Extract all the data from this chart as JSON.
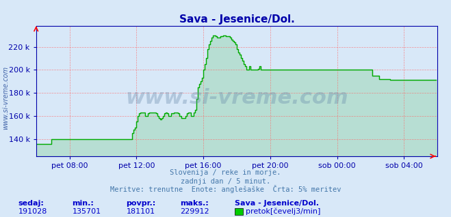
{
  "title": "Sava - Jesenice/Dol.",
  "background_color": "#d8e8f8",
  "plot_bg_color": "#d8e8f8",
  "line_color": "#00aa00",
  "axis_color": "#0000aa",
  "grid_color": "#ff6666",
  "text_color": "#0000aa",
  "ylabel_text": "www.si-vreme.com",
  "x_labels": [
    "pet 08:00",
    "pet 12:00",
    "pet 16:00",
    "pet 20:00",
    "sob 00:00",
    "sob 04:00"
  ],
  "y_ticks": [
    140,
    160,
    180,
    200,
    220
  ],
  "y_min": 130000,
  "y_max": 235000,
  "subtitle1": "Slovenija / reke in morje.",
  "subtitle2": "zadnji dan / 5 minut.",
  "subtitle3": "Meritve: trenutne  Enote: anglešaške  Črta: 5% meritev",
  "footer_labels": [
    "sedaj:",
    "min.:",
    "povpr.:",
    "maks.:"
  ],
  "footer_values": [
    "191028",
    "135701",
    "181101",
    "229912"
  ],
  "footer_station": "Sava - Jesenice/Dol.",
  "footer_legend": "pretok[čevelj3/min]",
  "legend_color": "#00cc00",
  "num_points": 288,
  "data_points": [
    135700,
    135700,
    135700,
    135700,
    135700,
    135700,
    135700,
    135700,
    135700,
    135700,
    135700,
    140000,
    140000,
    140000,
    140000,
    140000,
    140000,
    140000,
    140000,
    140000,
    140000,
    140000,
    140000,
    140000,
    140000,
    140000,
    140000,
    140000,
    140000,
    140000,
    140000,
    140000,
    140000,
    140000,
    140000,
    140000,
    140000,
    140000,
    140000,
    140000,
    140000,
    140000,
    140000,
    140000,
    140000,
    140000,
    140000,
    140000,
    140000,
    140000,
    140000,
    140000,
    140000,
    140000,
    140000,
    140000,
    140000,
    140000,
    140000,
    140000,
    140000,
    140000,
    140000,
    140000,
    140000,
    140000,
    140000,
    140000,
    140000,
    145000,
    148000,
    150000,
    155000,
    160000,
    162000,
    163000,
    163000,
    163000,
    160000,
    160000,
    162000,
    163000,
    163000,
    163000,
    163000,
    163000,
    162000,
    160000,
    158000,
    157000,
    158000,
    160000,
    162000,
    163000,
    162000,
    160000,
    160000,
    162000,
    162000,
    163000,
    163000,
    163000,
    162000,
    160000,
    158000,
    158000,
    158000,
    160000,
    162000,
    163000,
    163000,
    160000,
    160000,
    163000,
    165000,
    175000,
    185000,
    188000,
    190000,
    193000,
    200000,
    205000,
    210000,
    218000,
    222000,
    225000,
    228000,
    230000,
    230000,
    229000,
    228000,
    228000,
    229000,
    229000,
    230000,
    230000,
    229000,
    229000,
    229000,
    228000,
    226000,
    225000,
    224000,
    222000,
    218000,
    215000,
    213000,
    210000,
    208000,
    205000,
    203000,
    200000,
    200000,
    203000,
    200000,
    200000,
    200000,
    200000,
    200000,
    201000,
    203000,
    200000,
    200000,
    200000,
    200000,
    200000,
    200000,
    200000,
    200000,
    200000,
    200000,
    200000,
    200000,
    200000,
    200000,
    200000,
    200000,
    200000,
    200000,
    200000,
    200000,
    200000,
    200000,
    200000,
    200000,
    200000,
    200000,
    200000,
    200000,
    200000,
    200000,
    200000,
    200000,
    200000,
    200000,
    200000,
    200000,
    200000,
    200000,
    200000,
    200000,
    200000,
    200000,
    200000,
    200000,
    200000,
    200000,
    200000,
    200000,
    200000,
    200000,
    200000,
    200000,
    200000,
    200000,
    200000,
    200000,
    200000,
    200000,
    200000,
    200000,
    200000,
    200000,
    200000,
    200000,
    200000,
    200000,
    200000,
    200000,
    200000,
    200000,
    200000,
    200000,
    200000,
    200000,
    200000,
    200000,
    200000,
    200000,
    200000,
    200000,
    195000,
    195000,
    195000,
    195000,
    195000,
    192000,
    192000,
    192000,
    192000,
    192000,
    192000,
    192000,
    192000,
    191028,
    191028,
    191028,
    191028,
    191028,
    191028,
    191028,
    191028,
    191028,
    191028,
    191028,
    191028,
    191028,
    191028,
    191028,
    191028,
    191028,
    191028,
    191028,
    191028,
    191028,
    191028,
    191028,
    191028,
    191028,
    191028,
    191028,
    191028,
    191028,
    191028,
    191028,
    191028,
    191028,
    191028
  ]
}
